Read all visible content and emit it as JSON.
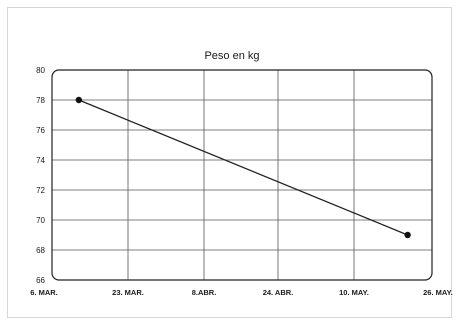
{
  "chart_data": {
    "type": "line",
    "title": "Peso en kg",
    "xlabel": "",
    "ylabel": "",
    "x_tick_labels": [
      "6. MAR.",
      "23. MAR.",
      "8.ABR.",
      "24. ABR.",
      "10. MAY.",
      "26. MAY."
    ],
    "y_ticks": [
      66,
      68,
      70,
      72,
      74,
      76,
      78,
      80
    ],
    "ylim": [
      66,
      80
    ],
    "grid": true,
    "series": [
      {
        "points": [
          {
            "x": "2019-03-12",
            "y": 78
          },
          {
            "x": "2019-05-21",
            "y": 69
          }
        ]
      }
    ],
    "colors": {
      "line": "#222222",
      "grid": "#555555",
      "marker": "#111111"
    }
  }
}
